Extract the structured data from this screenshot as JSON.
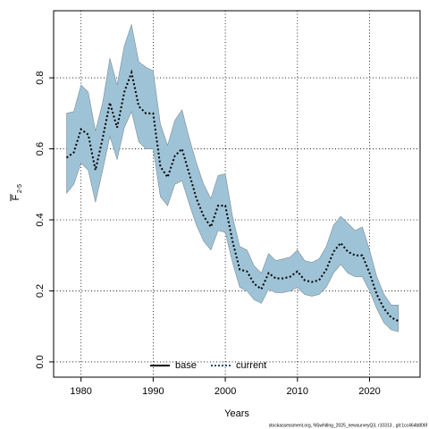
{
  "chart_data": {
    "type": "line_band",
    "x": [
      1978,
      1979,
      1980,
      1981,
      1982,
      1983,
      1984,
      1985,
      1986,
      1987,
      1988,
      1989,
      1990,
      1991,
      1992,
      1993,
      1994,
      1995,
      1996,
      1997,
      1998,
      1999,
      2000,
      2001,
      2002,
      2003,
      2004,
      2005,
      2006,
      2007,
      2008,
      2009,
      2010,
      2011,
      2012,
      2013,
      2014,
      2015,
      2016,
      2017,
      2018,
      2019,
      2020,
      2021,
      2022,
      2023,
      2024
    ],
    "series": [
      {
        "name": "current",
        "color": "#000000",
        "values": [
          0.575,
          0.59,
          0.655,
          0.64,
          0.54,
          0.63,
          0.73,
          0.66,
          0.76,
          0.815,
          0.72,
          0.7,
          0.7,
          0.55,
          0.52,
          0.58,
          0.6,
          0.53,
          0.46,
          0.41,
          0.38,
          0.44,
          0.44,
          0.34,
          0.26,
          0.255,
          0.22,
          0.205,
          0.25,
          0.235,
          0.235,
          0.24,
          0.255,
          0.23,
          0.225,
          0.23,
          0.26,
          0.31,
          0.335,
          0.31,
          0.3,
          0.3,
          0.25,
          0.19,
          0.15,
          0.125,
          0.115
        ],
        "upper": [
          0.7,
          0.705,
          0.78,
          0.76,
          0.65,
          0.73,
          0.855,
          0.78,
          0.89,
          0.95,
          0.845,
          0.83,
          0.82,
          0.67,
          0.61,
          0.68,
          0.71,
          0.63,
          0.56,
          0.5,
          0.46,
          0.525,
          0.53,
          0.41,
          0.325,
          0.315,
          0.27,
          0.25,
          0.305,
          0.285,
          0.29,
          0.295,
          0.315,
          0.285,
          0.28,
          0.29,
          0.325,
          0.385,
          0.41,
          0.39,
          0.37,
          0.38,
          0.315,
          0.24,
          0.19,
          0.16,
          0.16
        ],
        "lower": [
          0.475,
          0.5,
          0.56,
          0.54,
          0.45,
          0.54,
          0.635,
          0.57,
          0.66,
          0.705,
          0.62,
          0.6,
          0.6,
          0.465,
          0.44,
          0.5,
          0.51,
          0.445,
          0.385,
          0.34,
          0.315,
          0.37,
          0.365,
          0.28,
          0.21,
          0.2,
          0.175,
          0.165,
          0.205,
          0.195,
          0.195,
          0.2,
          0.21,
          0.19,
          0.185,
          0.19,
          0.21,
          0.25,
          0.275,
          0.25,
          0.24,
          0.24,
          0.2,
          0.15,
          0.11,
          0.09,
          0.085
        ],
        "band_color": "#9fc3d6"
      }
    ],
    "legend_entries": [
      {
        "name": "base",
        "color": "#000000",
        "style": "solid"
      },
      {
        "name": "current",
        "color": "#1b4f72",
        "style": "dotted"
      }
    ],
    "xlabel": "Years",
    "ylabel": "F",
    "ylabel_sub": "2-5",
    "xlim": [
      1976.2,
      2027
    ],
    "xticks": [
      1980,
      1990,
      2000,
      2010,
      2020
    ],
    "ylim": [
      -0.043,
      0.989
    ],
    "yticks": [
      {
        "value": 0,
        "label": "0.0"
      },
      0.2,
      0.4,
      0.6,
      0.8
    ],
    "grid": true,
    "footnote": "stockassessment.org, NSwhiting_2025_newsurveyQ3, r10313 , git:1cc464b806f"
  }
}
